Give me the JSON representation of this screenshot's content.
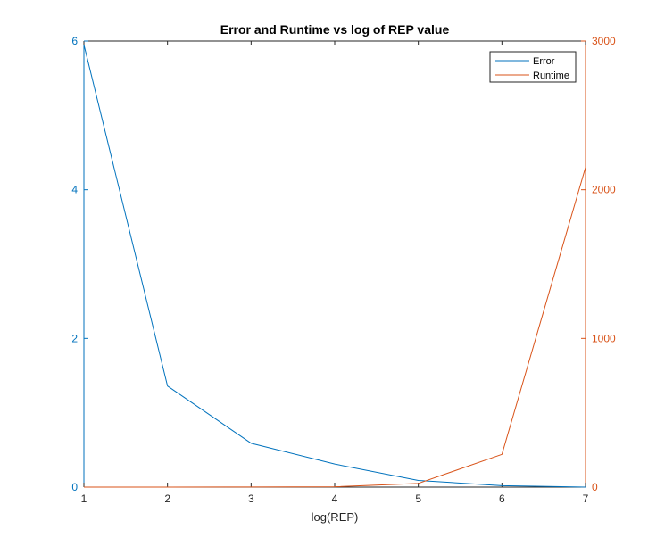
{
  "chart_data": {
    "type": "line",
    "title": "Error and Runtime vs log of REP value",
    "xlabel": "log(REP)",
    "ylabel_left": "",
    "ylabel_right": "",
    "x": [
      1,
      2,
      3,
      4,
      5,
      6,
      7
    ],
    "xlim": [
      1,
      7
    ],
    "x_ticks": [
      "1",
      "2",
      "3",
      "4",
      "5",
      "6",
      "7"
    ],
    "ylim_left": [
      0,
      6
    ],
    "y_ticks_left": [
      "0",
      "2",
      "4",
      "6"
    ],
    "ylim_right": [
      0,
      3000
    ],
    "y_ticks_right": [
      "0",
      "1000",
      "2000",
      "3000"
    ],
    "grid": false,
    "legend_position": "top-right",
    "series": [
      {
        "name": "Error",
        "axis": "left",
        "color": "#0072BD",
        "values": [
          5.95,
          1.36,
          0.59,
          0.31,
          0.09,
          0.02,
          0.0
        ]
      },
      {
        "name": "Runtime",
        "axis": "right",
        "color": "#D95319",
        "values": [
          0.1,
          0.2,
          0.5,
          2,
          25,
          220,
          2150
        ]
      }
    ]
  }
}
